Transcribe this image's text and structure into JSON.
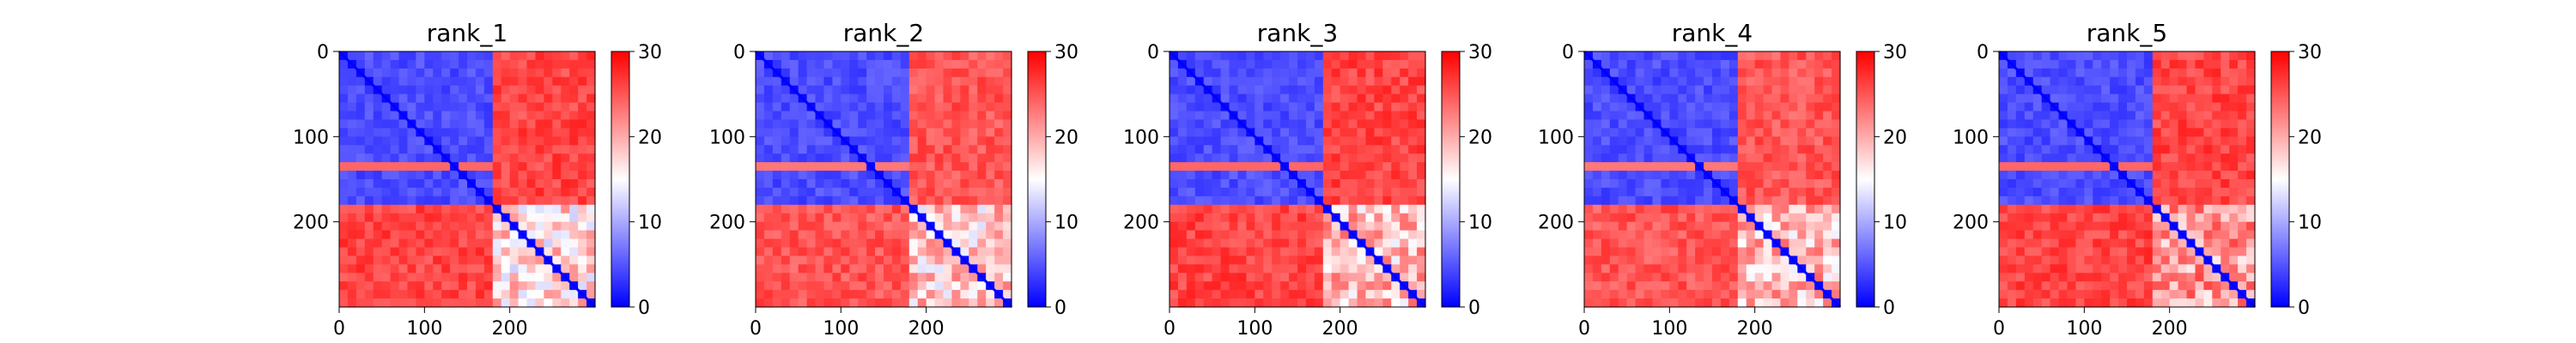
{
  "figure": {
    "panel_titles": [
      "rank_1",
      "rank_2",
      "rank_3",
      "rank_4",
      "rank_5"
    ]
  },
  "colors": {
    "low": "#0000ff",
    "mid": "#ffffff",
    "high": "#ff0000",
    "axis": "#000000"
  },
  "chart_data": [
    {
      "type": "heatmap",
      "title": "rank_1",
      "xlabel": "",
      "ylabel": "",
      "x_range": [
        0,
        300
      ],
      "y_range": [
        0,
        300
      ],
      "x_ticks": [
        "0",
        "100",
        "200"
      ],
      "y_ticks": [
        "0",
        "100",
        "200"
      ],
      "colorbar": {
        "range": [
          0,
          30
        ],
        "ticks": [
          "0",
          "10",
          "20",
          "30"
        ],
        "colormap": "bwr"
      },
      "blocks": {
        "domain_1_range": [
          0,
          185
        ],
        "domain_2_range": [
          185,
          300
        ],
        "inter_domain_value": 28,
        "intra_domain_value": 3,
        "domain_2_intra_value": 12
      }
    },
    {
      "type": "heatmap",
      "title": "rank_2",
      "xlabel": "",
      "ylabel": "",
      "x_range": [
        0,
        300
      ],
      "y_range": [
        0,
        300
      ],
      "x_ticks": [
        "0",
        "100",
        "200"
      ],
      "y_ticks": [
        "0",
        "100",
        "200"
      ],
      "colorbar": {
        "range": [
          0,
          30
        ],
        "ticks": [
          "0",
          "10",
          "20",
          "30"
        ],
        "colormap": "bwr"
      },
      "blocks": {
        "domain_1_range": [
          0,
          185
        ],
        "domain_2_range": [
          185,
          300
        ],
        "inter_domain_value": 27,
        "intra_domain_value": 3,
        "domain_2_intra_value": 13
      }
    },
    {
      "type": "heatmap",
      "title": "rank_3",
      "xlabel": "",
      "ylabel": "",
      "x_range": [
        0,
        300
      ],
      "y_range": [
        0,
        300
      ],
      "x_ticks": [
        "0",
        "100",
        "200"
      ],
      "y_ticks": [
        "0",
        "100",
        "200"
      ],
      "colorbar": {
        "range": [
          0,
          30
        ],
        "ticks": [
          "0",
          "10",
          "20",
          "30"
        ],
        "colormap": "bwr"
      },
      "blocks": {
        "domain_1_range": [
          0,
          185
        ],
        "domain_2_range": [
          185,
          300
        ],
        "inter_domain_value": 28,
        "intra_domain_value": 3,
        "domain_2_intra_value": 14
      }
    },
    {
      "type": "heatmap",
      "title": "rank_4",
      "xlabel": "",
      "ylabel": "",
      "x_range": [
        0,
        300
      ],
      "y_range": [
        0,
        300
      ],
      "x_ticks": [
        "0",
        "100",
        "200"
      ],
      "y_ticks": [
        "0",
        "100",
        "200"
      ],
      "colorbar": {
        "range": [
          0,
          30
        ],
        "ticks": [
          "0",
          "10",
          "20",
          "30"
        ],
        "colormap": "bwr"
      },
      "blocks": {
        "domain_1_range": [
          0,
          185
        ],
        "domain_2_range": [
          185,
          300
        ],
        "inter_domain_value": 27,
        "intra_domain_value": 3,
        "domain_2_intra_value": 14
      }
    },
    {
      "type": "heatmap",
      "title": "rank_5",
      "xlabel": "",
      "ylabel": "",
      "x_range": [
        0,
        300
      ],
      "y_range": [
        0,
        300
      ],
      "x_ticks": [
        "0",
        "100",
        "200"
      ],
      "y_ticks": [
        "0",
        "100",
        "200"
      ],
      "colorbar": {
        "range": [
          0,
          30
        ],
        "ticks": [
          "0",
          "10",
          "20",
          "30"
        ],
        "colormap": "bwr"
      },
      "blocks": {
        "domain_1_range": [
          0,
          185
        ],
        "domain_2_range": [
          185,
          300
        ],
        "inter_domain_value": 28,
        "intra_domain_value": 3,
        "domain_2_intra_value": 16
      }
    }
  ]
}
